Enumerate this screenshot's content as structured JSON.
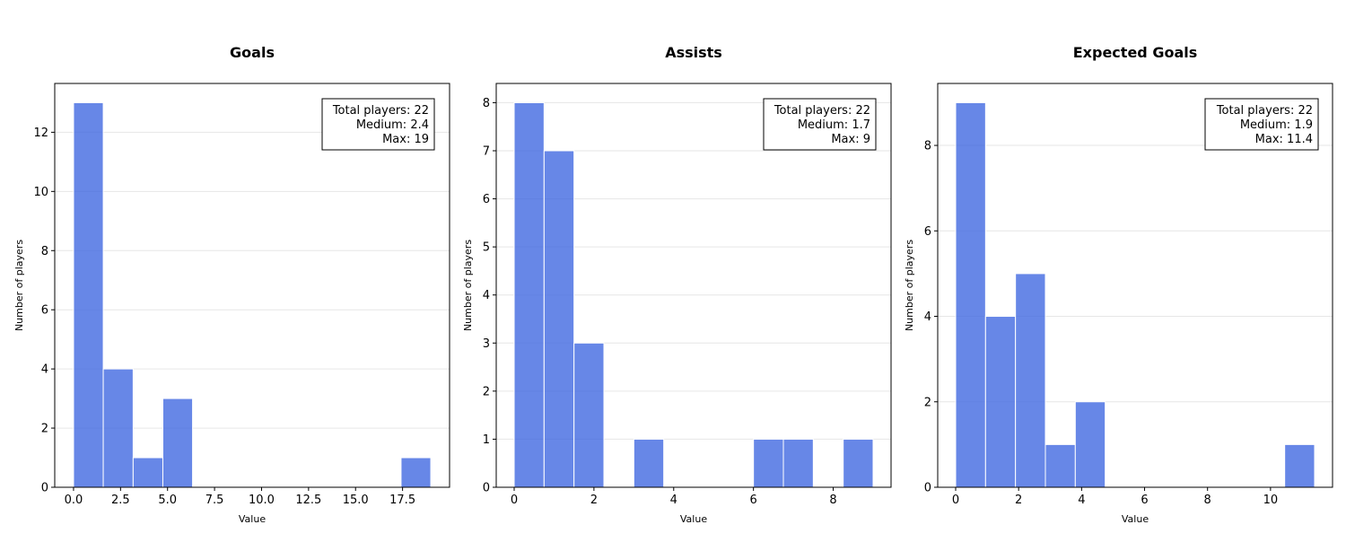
{
  "chart_data": [
    {
      "type": "bar",
      "title": "Goals",
      "xlabel": "Value",
      "ylabel": "Number of players",
      "xlim": [
        -1,
        20
      ],
      "ylim": [
        0,
        13.65
      ],
      "xticks": [
        0,
        2.5,
        5,
        7.5,
        10,
        12.5,
        15,
        17.5
      ],
      "xtick_labels": [
        "0.0",
        "2.5",
        "5.0",
        "7.5",
        "10.0",
        "12.5",
        "15.0",
        "17.5"
      ],
      "yticks": [
        0,
        2,
        4,
        6,
        8,
        10,
        12
      ],
      "bin_edges": [
        0,
        1.58,
        3.17,
        4.75,
        6.33,
        7.92,
        9.5,
        11.08,
        12.67,
        14.25,
        15.83,
        17.42,
        19
      ],
      "counts": [
        13,
        4,
        1,
        3,
        0,
        0,
        0,
        0,
        0,
        0,
        0,
        1
      ],
      "grid": "horizontal",
      "stats": [
        "Total players: 22",
        "Medium: 2.4",
        "Max: 19"
      ],
      "stats_position": "top-right"
    },
    {
      "type": "bar",
      "title": "Assists",
      "xlabel": "Value",
      "ylabel": "Number of players",
      "xlim": [
        -0.45,
        9.45
      ],
      "ylim": [
        0,
        8.4
      ],
      "xticks": [
        0,
        2,
        4,
        6,
        8
      ],
      "xtick_labels": [
        "0",
        "2",
        "4",
        "6",
        "8"
      ],
      "yticks": [
        0,
        1,
        2,
        3,
        4,
        5,
        6,
        7,
        8
      ],
      "bin_edges": [
        0,
        0.75,
        1.5,
        2.25,
        3,
        3.75,
        4.5,
        5.25,
        6,
        6.75,
        7.5,
        8.25,
        9
      ],
      "counts": [
        8,
        7,
        3,
        0,
        1,
        0,
        0,
        0,
        1,
        1,
        0,
        1
      ],
      "grid": "horizontal",
      "stats": [
        "Total players: 22",
        "Medium: 1.7",
        "Max: 9"
      ],
      "stats_position": "top-right"
    },
    {
      "type": "bar",
      "title": "Expected Goals",
      "xlabel": "Value",
      "ylabel": "Number of players",
      "xlim": [
        -0.57,
        11.97
      ],
      "ylim": [
        0,
        9.45
      ],
      "xticks": [
        0,
        2,
        4,
        6,
        8,
        10
      ],
      "xtick_labels": [
        "0",
        "2",
        "4",
        "6",
        "8",
        "10"
      ],
      "yticks": [
        0,
        2,
        4,
        6,
        8
      ],
      "bin_edges": [
        0,
        0.95,
        1.9,
        2.85,
        3.8,
        4.75,
        5.7,
        6.65,
        7.6,
        8.55,
        9.5,
        10.45,
        11.4
      ],
      "counts": [
        9,
        4,
        5,
        1,
        2,
        0,
        0,
        0,
        0,
        0,
        0,
        1
      ],
      "grid": "horizontal",
      "stats": [
        "Total players: 22",
        "Medium: 1.9",
        "Max: 11.4"
      ],
      "stats_position": "top-right"
    }
  ]
}
